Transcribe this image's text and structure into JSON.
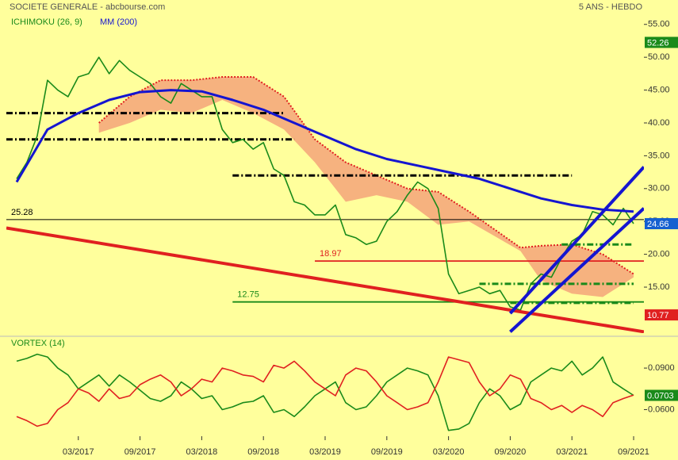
{
  "chart_data": [
    {
      "type": "price",
      "title": "SOCIETE GENERALE - abcbourse.com",
      "subtitle": "5 ANS - HEBDO",
      "indicators": [
        {
          "name": "ICHIMOKU (26, 9)",
          "color": "#1a8a1a"
        },
        {
          "name": "MM (200)",
          "color": "#1515d0"
        }
      ],
      "xlim": [
        "08/2016",
        "10/2021"
      ],
      "xticks": [
        "03/2017",
        "09/2017",
        "03/2018",
        "09/2018",
        "03/2019",
        "09/2019",
        "03/2020",
        "09/2020",
        "03/2021",
        "09/2021"
      ],
      "ylim": [
        8,
        56.3
      ],
      "yticks": [
        {
          "value": 15,
          "label": "15.00"
        },
        {
          "value": 20,
          "label": "20.00"
        },
        {
          "value": 25,
          "label": "25.00"
        },
        {
          "value": 30,
          "label": "30.00"
        },
        {
          "value": 35,
          "label": "35.00"
        },
        {
          "value": 40,
          "label": "40.00"
        },
        {
          "value": 45,
          "label": "45.00"
        },
        {
          "value": 50,
          "label": "50.00"
        },
        {
          "value": 55,
          "label": "55.00"
        }
      ],
      "series": [
        {
          "name": "Cours",
          "color": "#1a8a1a",
          "width": 1.6,
          "x": [
            "09/2016",
            "10/2016",
            "11/2016",
            "12/2016",
            "01/2017",
            "02/2017",
            "03/2017",
            "04/2017",
            "05/2017",
            "06/2017",
            "07/2017",
            "08/2017",
            "09/2017",
            "10/2017",
            "11/2017",
            "12/2017",
            "01/2018",
            "02/2018",
            "03/2018",
            "04/2018",
            "05/2018",
            "06/2018",
            "07/2018",
            "08/2018",
            "09/2018",
            "10/2018",
            "11/2018",
            "12/2018",
            "01/2019",
            "02/2019",
            "03/2019",
            "04/2019",
            "05/2019",
            "06/2019",
            "07/2019",
            "08/2019",
            "09/2019",
            "10/2019",
            "11/2019",
            "12/2019",
            "01/2020",
            "02/2020",
            "03/2020",
            "04/2020",
            "05/2020",
            "06/2020",
            "07/2020",
            "08/2020",
            "09/2020",
            "10/2020",
            "11/2020",
            "12/2020",
            "01/2021",
            "02/2021",
            "03/2021",
            "04/2021",
            "05/2021",
            "06/2021",
            "07/2021",
            "08/2021",
            "09/2021"
          ],
          "values": [
            31.5,
            34,
            38,
            46.5,
            45,
            44,
            47,
            47.5,
            50,
            47.5,
            49.5,
            48,
            47,
            46,
            44,
            43,
            46,
            45,
            44,
            44,
            39,
            37,
            37.5,
            36,
            37,
            33,
            32,
            28,
            27.5,
            26,
            26,
            27.5,
            23,
            22.5,
            21.5,
            22,
            25,
            26.5,
            29,
            31,
            30,
            27,
            17,
            14,
            14.5,
            15,
            14,
            14.5,
            12,
            11.5,
            15.5,
            17,
            16.5,
            19.5,
            22,
            23,
            26.5,
            26,
            24.5,
            27,
            24.66
          ]
        },
        {
          "name": "MM (200)",
          "color": "#1515d0",
          "width": 3,
          "x": [
            "09/2016",
            "12/2016",
            "03/2017",
            "06/2017",
            "09/2017",
            "12/2017",
            "03/2018",
            "06/2018",
            "09/2018",
            "12/2018",
            "03/2019",
            "06/2019",
            "09/2019",
            "12/2019",
            "03/2020",
            "06/2020",
            "09/2020",
            "12/2020",
            "03/2021",
            "06/2021",
            "09/2021"
          ],
          "values": [
            31,
            39,
            41.5,
            43.5,
            44.7,
            45,
            44.8,
            43.5,
            42,
            40,
            38,
            36,
            34.5,
            33.5,
            32.5,
            31.5,
            30,
            28.5,
            27.5,
            26.8,
            26.5
          ]
        }
      ],
      "cloud": {
        "color": "#f4a57a",
        "edge": "#e02020",
        "x": [
          "05/2017",
          "08/2017",
          "11/2017",
          "02/2018",
          "05/2018",
          "08/2018",
          "11/2018",
          "02/2019",
          "05/2019",
          "08/2019",
          "11/2019",
          "02/2020",
          "05/2020",
          "10/2020",
          "12/2020",
          "03/2021",
          "06/2021",
          "09/2021"
        ],
        "upper": [
          40,
          44,
          46.5,
          46.5,
          47,
          47,
          44,
          37.5,
          34,
          32,
          30,
          29.5,
          26.5,
          21,
          21.3,
          21.5,
          20,
          17
        ],
        "lower": [
          38.5,
          40,
          42,
          41.5,
          43.5,
          41.5,
          39,
          34,
          28,
          29,
          28,
          24.5,
          25,
          20.5,
          16,
          14,
          13.5,
          16.5
        ]
      },
      "levels": [
        {
          "value": 25.28,
          "color": "#000000",
          "from": "08/2016",
          "to": "10/2021",
          "labeled": true
        },
        {
          "value": 18.97,
          "color": "#e02020",
          "from": "02/2019",
          "to": "10/2021",
          "labeled": true
        },
        {
          "value": 12.75,
          "color": "#1a8a1a",
          "from": "06/2018",
          "to": "10/2021",
          "labeled": true
        },
        {
          "value": 41.5,
          "color": "#000000",
          "from": "08/2016",
          "to": "11/2018",
          "dash": true
        },
        {
          "value": 37.5,
          "color": "#000000",
          "from": "08/2016",
          "to": "12/2018",
          "dash": true
        },
        {
          "value": 32,
          "color": "#000000",
          "from": "06/2018",
          "to": "03/2021",
          "dash": true
        },
        {
          "value": 21.5,
          "color": "#1a8a1a",
          "from": "02/2021",
          "to": "09/2021",
          "dash": true
        },
        {
          "value": 15.5,
          "color": "#1a8a1a",
          "from": "06/2020",
          "to": "09/2021",
          "dash": true
        },
        {
          "value": 12.6,
          "color": "#1a8a1a",
          "from": "09/2020",
          "to": "09/2021",
          "dash": true
        }
      ],
      "trendlines": [
        {
          "color": "#e02020",
          "width": 4,
          "from": [
            "08/2016",
            24
          ],
          "to": [
            "10/2021",
            8.2
          ]
        },
        {
          "color": "#1515d0",
          "width": 4,
          "from": [
            "09/2020",
            8.2
          ],
          "to": [
            "10/2021",
            27
          ]
        },
        {
          "color": "#1515d0",
          "width": 4,
          "from": [
            "09/2020",
            11
          ],
          "to": [
            "10/2021",
            33.3
          ]
        }
      ],
      "markers": [
        {
          "value": 52.26,
          "color": "#1a8a1a"
        },
        {
          "value": 24.66,
          "color": "#1560d0"
        },
        {
          "value": 10.77,
          "color": "#e02020"
        }
      ]
    },
    {
      "type": "vortex",
      "title": "VORTEX (14)",
      "xlim": [
        "08/2016",
        "10/2021"
      ],
      "ylim": [
        0.0408,
        0.1038
      ],
      "yticks": [
        {
          "value": 0.06,
          "label": "0.0600"
        },
        {
          "value": 0.09,
          "label": "0.0900"
        }
      ],
      "series": [
        {
          "name": "VI+",
          "color": "#1a8a1a",
          "width": 1.6,
          "values": [
            0.095,
            0.097,
            0.1,
            0.098,
            0.09,
            0.085,
            0.075,
            0.08,
            0.085,
            0.077,
            0.085,
            0.08,
            0.074,
            0.068,
            0.066,
            0.07,
            0.08,
            0.075,
            0.068,
            0.07,
            0.06,
            0.062,
            0.065,
            0.066,
            0.07,
            0.058,
            0.06,
            0.055,
            0.062,
            0.07,
            0.075,
            0.08,
            0.065,
            0.06,
            0.062,
            0.07,
            0.08,
            0.085,
            0.09,
            0.088,
            0.085,
            0.07,
            0.045,
            0.046,
            0.05,
            0.065,
            0.075,
            0.07,
            0.06,
            0.064,
            0.08,
            0.085,
            0.09,
            0.088,
            0.095,
            0.085,
            0.09,
            0.098,
            0.08,
            0.075,
            0.0703
          ]
        },
        {
          "name": "VI-",
          "color": "#e02020",
          "width": 1.6,
          "values": [
            0.055,
            0.052,
            0.048,
            0.05,
            0.06,
            0.065,
            0.075,
            0.072,
            0.066,
            0.075,
            0.068,
            0.07,
            0.078,
            0.082,
            0.085,
            0.08,
            0.07,
            0.075,
            0.082,
            0.08,
            0.09,
            0.088,
            0.085,
            0.084,
            0.08,
            0.092,
            0.09,
            0.095,
            0.088,
            0.08,
            0.075,
            0.07,
            0.085,
            0.09,
            0.088,
            0.08,
            0.07,
            0.065,
            0.06,
            0.062,
            0.065,
            0.08,
            0.098,
            0.096,
            0.094,
            0.08,
            0.07,
            0.075,
            0.085,
            0.082,
            0.068,
            0.065,
            0.06,
            0.063,
            0.058,
            0.063,
            0.06,
            0.055,
            0.065,
            0.068,
            0.0705
          ]
        }
      ],
      "markers": [
        {
          "value": 0.0703,
          "color": "#1a8a1a"
        }
      ]
    }
  ]
}
